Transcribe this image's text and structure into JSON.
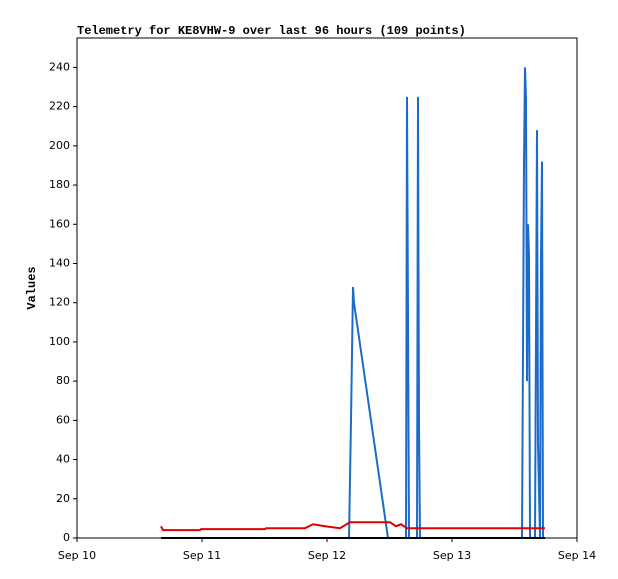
{
  "chart_data": {
    "type": "line",
    "title": "Telemetry for KE8VHW-9 over last 96 hours (109 points)",
    "y_label": "Values",
    "xlim": [
      10,
      14
    ],
    "xticks": [
      {
        "value": 10,
        "label": "Sep 10"
      },
      {
        "value": 11,
        "label": "Sep 11"
      },
      {
        "value": 12,
        "label": "Sep 12"
      },
      {
        "value": 13,
        "label": "Sep 13"
      },
      {
        "value": 14,
        "label": "Sep 14"
      }
    ],
    "ylim": [
      0,
      255
    ],
    "yticks": [
      0,
      20,
      40,
      60,
      80,
      100,
      120,
      140,
      160,
      180,
      200,
      220,
      240
    ],
    "grid": false,
    "series": [
      {
        "color": "#1a6cc8",
        "x": [
          12.176,
          12.192,
          12.208,
          12.216,
          12.488,
          12.632,
          12.64,
          12.648,
          12.656,
          12.72,
          12.728,
          12.736,
          12.744,
          13.56,
          13.568,
          13.576,
          13.584,
          13.592,
          13.6,
          13.608,
          13.616,
          13.624,
          13.664,
          13.672,
          13.68,
          13.688,
          13.704,
          13.712,
          13.72,
          13.728
        ],
        "values": [
          0,
          60,
          128,
          120,
          0,
          0,
          225,
          112,
          0,
          0,
          225,
          57,
          0,
          0,
          96,
          192,
          240,
          224,
          80,
          160,
          144,
          0,
          0,
          104,
          208,
          48,
          0,
          144,
          192,
          0
        ]
      },
      {
        "color": "#e00000",
        "x": [
          10.672,
          10.688,
          10.984,
          10.992,
          11.504,
          11.512,
          11.824,
          11.888,
          11.984,
          12.104,
          12.184,
          12.504,
          12.552,
          12.592,
          12.64,
          13.744
        ],
        "values": [
          6,
          4,
          4,
          4.5,
          4.5,
          5,
          5,
          7,
          6,
          5,
          8,
          8,
          6,
          7,
          5,
          5
        ]
      },
      {
        "color": "#000000",
        "x": [
          10.672,
          13.744
        ],
        "values": [
          0,
          0
        ]
      }
    ]
  }
}
